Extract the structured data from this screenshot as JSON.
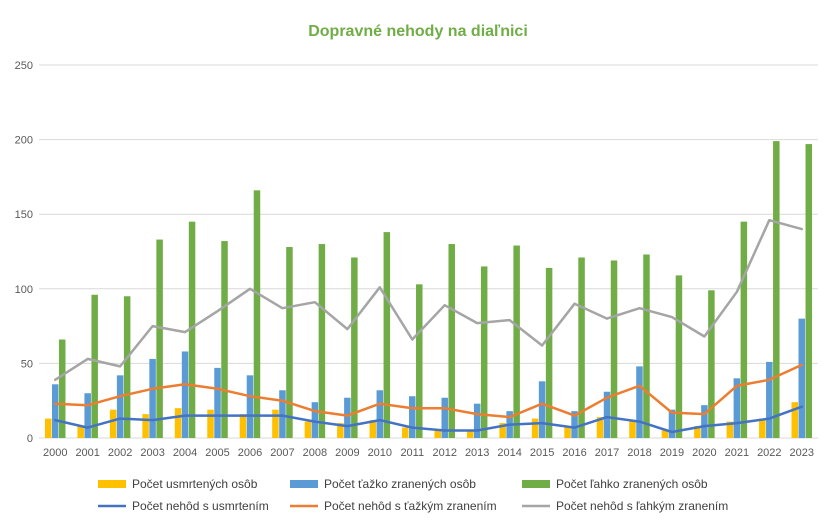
{
  "chart_data": {
    "type": "bar",
    "title": "Dopravné nehody na diaľnici",
    "categories": [
      "2000",
      "2001",
      "2002",
      "2003",
      "2004",
      "2005",
      "2006",
      "2007",
      "2008",
      "2009",
      "2010",
      "2011",
      "2012",
      "2013",
      "2014",
      "2015",
      "2016",
      "2017",
      "2018",
      "2019",
      "2020",
      "2021",
      "2022",
      "2023"
    ],
    "ylim": [
      0,
      250
    ],
    "yticks": [
      0,
      50,
      100,
      150,
      200,
      250
    ],
    "grid": true,
    "legend_position": "bottom",
    "bar_series": [
      {
        "name": "Počet usmrtených osôb",
        "color": "#FFC000",
        "values": [
          13,
          8,
          19,
          16,
          20,
          19,
          16,
          19,
          11,
          10,
          12,
          7,
          6,
          5,
          10,
          13,
          8,
          14,
          12,
          5,
          8,
          11,
          13,
          24
        ]
      },
      {
        "name": "Počet ťažko zranených osôb",
        "color": "#5B9BD5",
        "values": [
          36,
          30,
          42,
          53,
          58,
          47,
          42,
          32,
          24,
          27,
          32,
          28,
          27,
          23,
          18,
          38,
          18,
          31,
          48,
          19,
          22,
          40,
          51,
          80
        ]
      },
      {
        "name": "Počet ľahko zranených osôb",
        "color": "#70AD47",
        "values": [
          66,
          96,
          95,
          133,
          145,
          132,
          166,
          128,
          130,
          121,
          138,
          103,
          130,
          115,
          129,
          114,
          121,
          119,
          123,
          109,
          99,
          145,
          199,
          197
        ]
      }
    ],
    "line_series": [
      {
        "name": "Počet nehôd s usmrtením",
        "color": "#4472C4",
        "values": [
          12,
          7,
          13,
          12,
          15,
          15,
          15,
          15,
          11,
          8,
          12,
          7,
          5,
          5,
          9,
          10,
          7,
          14,
          11,
          4,
          8,
          10,
          13,
          21
        ]
      },
      {
        "name": "Počet nehôd s ťažkým zranením",
        "color": "#ED7D31",
        "values": [
          23,
          22,
          28,
          33,
          36,
          33,
          28,
          25,
          18,
          15,
          23,
          20,
          20,
          16,
          14,
          23,
          15,
          27,
          35,
          17,
          16,
          35,
          39,
          49
        ]
      },
      {
        "name": "Počet nehôd s ľahkým zranením",
        "color": "#A5A5A5",
        "values": [
          39,
          53,
          48,
          75,
          71,
          85,
          100,
          87,
          91,
          73,
          101,
          66,
          89,
          77,
          79,
          62,
          90,
          80,
          87,
          81,
          68,
          98,
          146,
          140
        ]
      }
    ]
  }
}
